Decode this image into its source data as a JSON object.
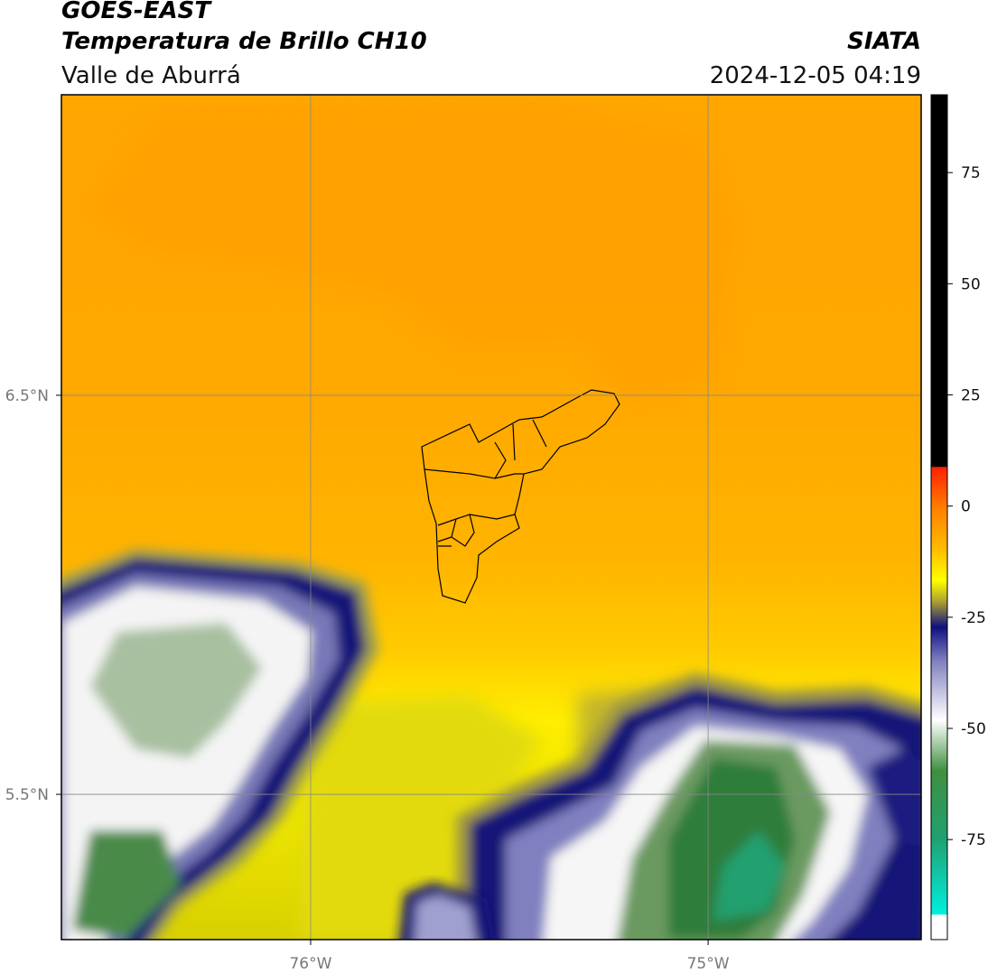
{
  "header": {
    "title": "GOES-EAST",
    "subtitle": "Temperatura de Brillo CH10",
    "source": "SIATA",
    "region": "Valle de Aburrá",
    "datetime": "2024-12-05 04:19"
  },
  "map": {
    "lonlim": [
      -76.627,
      -74.464
    ],
    "latlim": [
      5.136,
      7.253
    ],
    "xticks": [
      {
        "value": -76,
        "label": "76°W"
      },
      {
        "value": -75,
        "label": "75°W"
      }
    ],
    "yticks": [
      {
        "value": 6.5,
        "label": "6.5°N"
      },
      {
        "value": 5.5,
        "label": "5.5°N"
      }
    ],
    "grid": true
  },
  "colorbar": {
    "lim": [
      -97.5,
      92.5
    ],
    "ticks": [
      75,
      50,
      25,
      0,
      -25,
      -50,
      -75
    ]
  }
}
